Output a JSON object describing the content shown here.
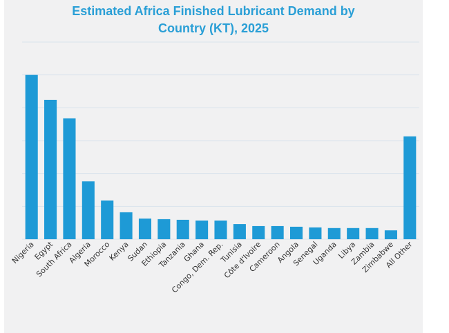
{
  "chart_data": {
    "type": "bar",
    "title_lines": [
      "Estimated Africa Finished Lubricant Demand by",
      "Country (KT), 2025"
    ],
    "xlabel": "",
    "ylabel": "",
    "y_axis_labels_shown": false,
    "y_units_note": "values in relative gridline units (axis unlabeled)",
    "ylim": [
      0,
      6
    ],
    "gridlines": [
      1,
      2,
      3,
      4,
      5,
      6
    ],
    "grid": true,
    "legend": "none",
    "bar_color": "#1e9ad6",
    "categories": [
      "Nigeria",
      "Egypt",
      "South Africa",
      "Algeria",
      "Morocco",
      "Kenya",
      "Sudan",
      "Ethiopia",
      "Tanzania",
      "Ghana",
      "Congo, Dem. Rep.",
      "Tunisia",
      "Côte d'Ivoire",
      "Cameroon",
      "Angola",
      "Senegal",
      "Uganda",
      "Libya",
      "Zambia",
      "Zimbabwe",
      "All Other"
    ],
    "values": [
      5.0,
      4.24,
      3.68,
      1.76,
      1.18,
      0.82,
      0.63,
      0.61,
      0.59,
      0.57,
      0.57,
      0.46,
      0.4,
      0.4,
      0.38,
      0.36,
      0.34,
      0.34,
      0.34,
      0.27,
      3.13
    ]
  }
}
